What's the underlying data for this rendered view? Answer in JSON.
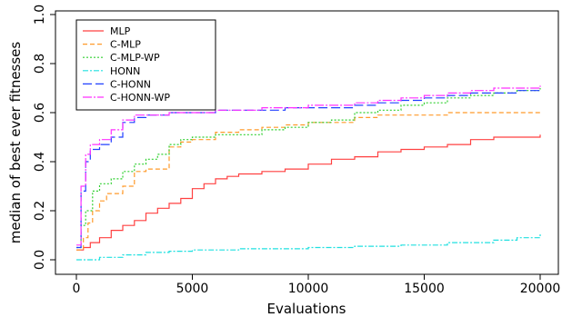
{
  "chart_data": {
    "type": "line",
    "title": "",
    "xlabel": "Evaluations",
    "ylabel": "median of best ever fitnesses",
    "xlim": [
      0,
      20000
    ],
    "ylim": [
      0,
      1
    ],
    "x_ticks": [
      0,
      5000,
      10000,
      15000,
      20000
    ],
    "x_tick_labels": [
      "0",
      "5000",
      "10000",
      "15000",
      "20000"
    ],
    "y_ticks": [
      0,
      0.2,
      0.4,
      0.6,
      0.8,
      1
    ],
    "y_tick_labels": [
      "0.0",
      "0.2",
      "0.4",
      "0.6",
      "0.8",
      "1.0"
    ],
    "grid": false,
    "legend_position": "top-left",
    "series": [
      {
        "name": "MLP",
        "color": "#ff4040",
        "dash": "solid",
        "points": [
          [
            0,
            0.04
          ],
          [
            300,
            0.05
          ],
          [
            600,
            0.07
          ],
          [
            1000,
            0.09
          ],
          [
            1500,
            0.12
          ],
          [
            2000,
            0.14
          ],
          [
            2500,
            0.16
          ],
          [
            3000,
            0.19
          ],
          [
            3500,
            0.21
          ],
          [
            4000,
            0.23
          ],
          [
            4500,
            0.25
          ],
          [
            5000,
            0.29
          ],
          [
            5500,
            0.31
          ],
          [
            6000,
            0.33
          ],
          [
            6500,
            0.34
          ],
          [
            7000,
            0.35
          ],
          [
            8000,
            0.36
          ],
          [
            9000,
            0.37
          ],
          [
            10000,
            0.39
          ],
          [
            11000,
            0.41
          ],
          [
            12000,
            0.42
          ],
          [
            13000,
            0.44
          ],
          [
            14000,
            0.45
          ],
          [
            15000,
            0.46
          ],
          [
            16000,
            0.47
          ],
          [
            17000,
            0.49
          ],
          [
            18000,
            0.5
          ],
          [
            19000,
            0.5
          ],
          [
            20000,
            0.51
          ]
        ]
      },
      {
        "name": "C-MLP",
        "color": "#ff9a2a",
        "dash": "5,3",
        "points": [
          [
            0,
            0.04
          ],
          [
            300,
            0.09
          ],
          [
            500,
            0.15
          ],
          [
            700,
            0.2
          ],
          [
            1000,
            0.24
          ],
          [
            1300,
            0.27
          ],
          [
            2000,
            0.3
          ],
          [
            2500,
            0.36
          ],
          [
            3000,
            0.37
          ],
          [
            3700,
            0.37
          ],
          [
            4000,
            0.46
          ],
          [
            4500,
            0.48
          ],
          [
            5000,
            0.49
          ],
          [
            6000,
            0.52
          ],
          [
            7000,
            0.53
          ],
          [
            8000,
            0.54
          ],
          [
            9000,
            0.55
          ],
          [
            10000,
            0.56
          ],
          [
            11000,
            0.56
          ],
          [
            12000,
            0.58
          ],
          [
            13000,
            0.59
          ],
          [
            15000,
            0.59
          ],
          [
            16000,
            0.6
          ],
          [
            18000,
            0.6
          ],
          [
            20000,
            0.6
          ]
        ]
      },
      {
        "name": "C-MLP-WP",
        "color": "#30d030",
        "dash": "2,2",
        "points": [
          [
            0,
            0.05
          ],
          [
            200,
            0.14
          ],
          [
            400,
            0.2
          ],
          [
            700,
            0.28
          ],
          [
            1000,
            0.31
          ],
          [
            1500,
            0.33
          ],
          [
            2000,
            0.36
          ],
          [
            2500,
            0.39
          ],
          [
            3000,
            0.41
          ],
          [
            3500,
            0.43
          ],
          [
            4000,
            0.47
          ],
          [
            4500,
            0.49
          ],
          [
            5000,
            0.5
          ],
          [
            6000,
            0.51
          ],
          [
            7000,
            0.51
          ],
          [
            8000,
            0.53
          ],
          [
            9000,
            0.54
          ],
          [
            10000,
            0.56
          ],
          [
            11000,
            0.57
          ],
          [
            12000,
            0.6
          ],
          [
            13000,
            0.61
          ],
          [
            14000,
            0.63
          ],
          [
            15000,
            0.64
          ],
          [
            16000,
            0.66
          ],
          [
            17000,
            0.67
          ],
          [
            18000,
            0.68
          ],
          [
            19000,
            0.69
          ],
          [
            20000,
            0.7
          ]
        ]
      },
      {
        "name": "HONN",
        "color": "#20e0e0",
        "dash": "6,2,2,2",
        "points": [
          [
            0,
            0.0
          ],
          [
            1000,
            0.01
          ],
          [
            2000,
            0.02
          ],
          [
            3000,
            0.03
          ],
          [
            4000,
            0.035
          ],
          [
            5000,
            0.04
          ],
          [
            7000,
            0.045
          ],
          [
            10000,
            0.05
          ],
          [
            12000,
            0.055
          ],
          [
            14000,
            0.06
          ],
          [
            16000,
            0.07
          ],
          [
            18000,
            0.08
          ],
          [
            19000,
            0.09
          ],
          [
            20000,
            0.105
          ]
        ]
      },
      {
        "name": "C-HONN",
        "color": "#2040ff",
        "dash": "10,4",
        "points": [
          [
            0,
            0.05
          ],
          [
            200,
            0.28
          ],
          [
            400,
            0.4
          ],
          [
            600,
            0.45
          ],
          [
            1000,
            0.47
          ],
          [
            1500,
            0.5
          ],
          [
            2000,
            0.56
          ],
          [
            2500,
            0.58
          ],
          [
            3000,
            0.59
          ],
          [
            4000,
            0.6
          ],
          [
            5000,
            0.6
          ],
          [
            6000,
            0.61
          ],
          [
            7000,
            0.61
          ],
          [
            8000,
            0.61
          ],
          [
            9000,
            0.62
          ],
          [
            10000,
            0.62
          ],
          [
            11000,
            0.62
          ],
          [
            12000,
            0.63
          ],
          [
            13000,
            0.64
          ],
          [
            14000,
            0.65
          ],
          [
            15000,
            0.66
          ],
          [
            16000,
            0.67
          ],
          [
            17000,
            0.68
          ],
          [
            18000,
            0.68
          ],
          [
            19000,
            0.69
          ],
          [
            20000,
            0.7
          ]
        ]
      },
      {
        "name": "C-HONN-WP",
        "color": "#ff30ff",
        "dash": "10,2,2,2",
        "points": [
          [
            0,
            0.06
          ],
          [
            200,
            0.3
          ],
          [
            400,
            0.43
          ],
          [
            600,
            0.47
          ],
          [
            1000,
            0.49
          ],
          [
            1500,
            0.53
          ],
          [
            2000,
            0.57
          ],
          [
            2500,
            0.59
          ],
          [
            3000,
            0.59
          ],
          [
            4000,
            0.6
          ],
          [
            5000,
            0.6
          ],
          [
            6000,
            0.61
          ],
          [
            7000,
            0.61
          ],
          [
            8000,
            0.62
          ],
          [
            9000,
            0.62
          ],
          [
            10000,
            0.63
          ],
          [
            11000,
            0.63
          ],
          [
            12000,
            0.64
          ],
          [
            13000,
            0.65
          ],
          [
            14000,
            0.66
          ],
          [
            15000,
            0.67
          ],
          [
            16000,
            0.68
          ],
          [
            17000,
            0.69
          ],
          [
            18000,
            0.7
          ],
          [
            19000,
            0.7
          ],
          [
            20000,
            0.71
          ]
        ]
      }
    ]
  }
}
